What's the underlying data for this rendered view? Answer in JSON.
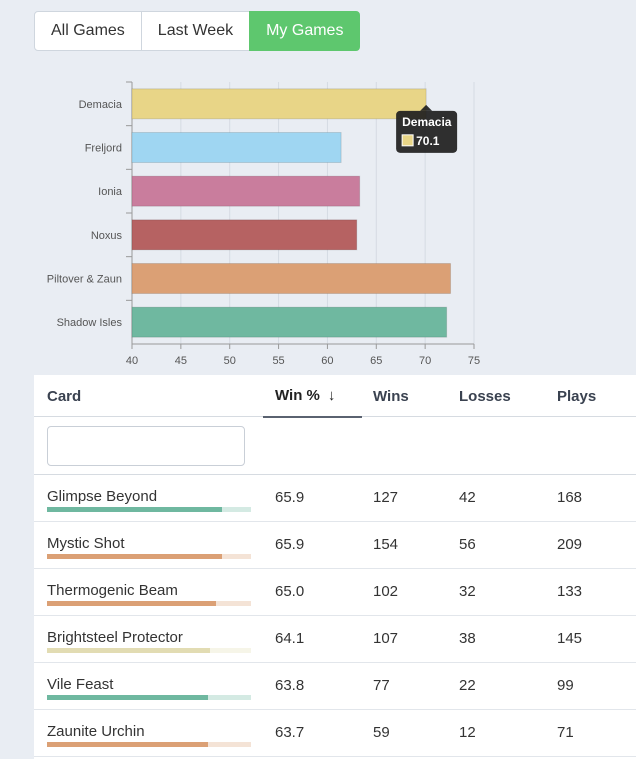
{
  "tabs": [
    {
      "label": "All Games",
      "active": false
    },
    {
      "label": "Last Week",
      "active": false
    },
    {
      "label": "My Games",
      "active": true
    }
  ],
  "chart_data": {
    "type": "bar",
    "orientation": "horizontal",
    "categories": [
      "Demacia",
      "Freljord",
      "Ionia",
      "Noxus",
      "Piltover & Zaun",
      "Shadow Isles"
    ],
    "values": [
      70.1,
      61.4,
      63.3,
      63.0,
      72.6,
      72.2
    ],
    "colors": [
      "#e8d587",
      "#9fd6f2",
      "#c97d9d",
      "#b66262",
      "#dba075",
      "#6fb8a0"
    ],
    "xlim": [
      40,
      75
    ],
    "xticks": [
      40,
      45,
      50,
      55,
      60,
      65,
      70,
      75
    ],
    "grid": true,
    "tooltip": {
      "category": "Demacia",
      "value": "70.1"
    }
  },
  "table": {
    "columns": [
      "Card",
      "Win %",
      "Wins",
      "Losses",
      "Plays"
    ],
    "sorted_column": "Win %",
    "sort_icon": "arrow-down-icon",
    "filter_placeholder": "",
    "rows": [
      {
        "card": "Glimpse Beyond",
        "win": "65.9",
        "wins": "127",
        "losses": "42",
        "plays": "168",
        "fill": 0.86,
        "color": "#6fb8a0"
      },
      {
        "card": "Mystic Shot",
        "win": "65.9",
        "wins": "154",
        "losses": "56",
        "plays": "209",
        "fill": 0.86,
        "color": "#dba075"
      },
      {
        "card": "Thermogenic Beam",
        "win": "65.0",
        "wins": "102",
        "losses": "32",
        "plays": "133",
        "fill": 0.83,
        "color": "#dba075"
      },
      {
        "card": "Brightsteel Protector",
        "win": "64.1",
        "wins": "107",
        "losses": "38",
        "plays": "145",
        "fill": 0.8,
        "color": "#e2dcb3"
      },
      {
        "card": "Vile Feast",
        "win": "63.8",
        "wins": "77",
        "losses": "22",
        "plays": "99",
        "fill": 0.79,
        "color": "#6fb8a0"
      },
      {
        "card": "Zaunite Urchin",
        "win": "63.7",
        "wins": "59",
        "losses": "12",
        "plays": "71",
        "fill": 0.79,
        "color": "#dba075"
      }
    ]
  }
}
